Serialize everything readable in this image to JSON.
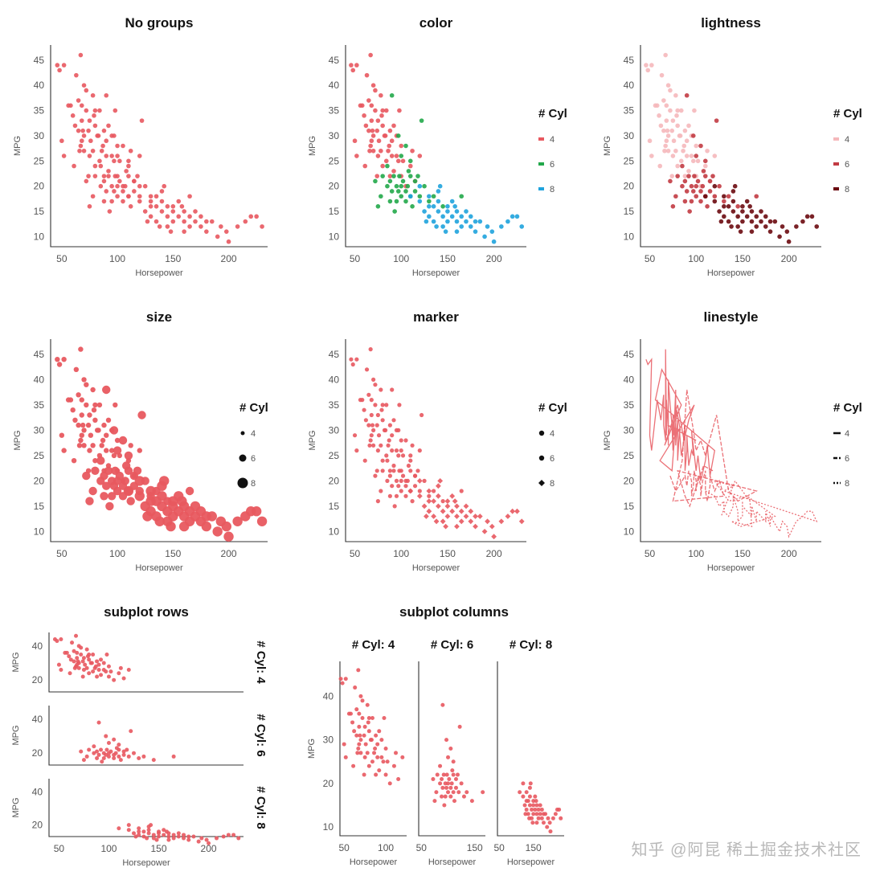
{
  "palette": {
    "base": "#e8585f",
    "c4": "#e8585f",
    "c6": "#22a84a",
    "c8": "#1fa3dd",
    "l4": "#f5b8bb",
    "l6": "#c23b43",
    "l8": "#6b0a10"
  },
  "common": {
    "xlabel": "Horsepower",
    "ylabel": "MPG",
    "legend_title": "# Cyl",
    "groups": [
      "4",
      "6",
      "8"
    ]
  },
  "panels": [
    {
      "key": "nogroups",
      "title": "No groups"
    },
    {
      "key": "color",
      "title": "color"
    },
    {
      "key": "lightness",
      "title": "lightness"
    },
    {
      "key": "size",
      "title": "size"
    },
    {
      "key": "marker",
      "title": "marker"
    },
    {
      "key": "linestyle",
      "title": "linestyle"
    }
  ],
  "subplot_rows": {
    "title": "subplot rows",
    "strips": [
      "# Cyl: 4",
      "# Cyl: 6",
      "# Cyl: 8"
    ]
  },
  "subplot_columns": {
    "title": "subplot columns",
    "strips": [
      "# Cyl: 4",
      "# Cyl: 6",
      "# Cyl: 8"
    ]
  },
  "watermark": "知乎 @阿昆 稀土掘金技术社区",
  "chart_data": {
    "type": "scatter",
    "xlim": [
      40,
      235
    ],
    "ylim": [
      8,
      48
    ],
    "x_ticks": [
      50,
      100,
      150,
      200
    ],
    "y_ticks": [
      10,
      15,
      20,
      25,
      30,
      35,
      40,
      45
    ],
    "series": [
      {
        "name": "4",
        "points": [
          [
            46,
            44
          ],
          [
            48,
            43
          ],
          [
            52,
            44
          ],
          [
            50,
            29
          ],
          [
            52,
            26
          ],
          [
            58,
            36
          ],
          [
            60,
            34
          ],
          [
            62,
            32
          ],
          [
            65,
            37
          ],
          [
            65,
            31
          ],
          [
            67,
            28
          ],
          [
            67,
            46
          ],
          [
            68,
            29
          ],
          [
            68,
            33
          ],
          [
            68,
            36
          ],
          [
            70,
            30
          ],
          [
            70,
            27
          ],
          [
            70,
            40
          ],
          [
            72,
            35
          ],
          [
            74,
            31
          ],
          [
            75,
            26
          ],
          [
            75,
            33
          ],
          [
            76,
            29
          ],
          [
            78,
            38
          ],
          [
            78,
            27
          ],
          [
            80,
            32
          ],
          [
            80,
            24
          ],
          [
            82,
            30
          ],
          [
            84,
            25
          ],
          [
            86,
            27
          ],
          [
            88,
            31
          ],
          [
            88,
            22
          ],
          [
            90,
            26
          ],
          [
            90,
            29
          ],
          [
            92,
            23
          ],
          [
            95,
            26
          ],
          [
            97,
            25
          ],
          [
            95,
            30
          ],
          [
            100,
            22
          ],
          [
            102,
            25
          ],
          [
            105,
            20
          ],
          [
            110,
            24
          ],
          [
            112,
            27
          ],
          [
            115,
            21
          ],
          [
            120,
            26
          ],
          [
            56,
            36
          ],
          [
            63,
            42
          ],
          [
            72,
            39
          ],
          [
            84,
            35
          ],
          [
            66,
            27
          ],
          [
            80,
            35
          ],
          [
            87,
            28
          ],
          [
            92,
            32
          ],
          [
            98,
            35
          ],
          [
            61,
            24
          ],
          [
            74,
            22
          ],
          [
            79,
            34
          ],
          [
            83,
            30
          ],
          [
            69,
            31
          ],
          [
            100,
            28
          ]
        ]
      },
      {
        "name": "6",
        "points": [
          [
            72,
            21
          ],
          [
            78,
            18
          ],
          [
            85,
            20
          ],
          [
            88,
            21
          ],
          [
            90,
            19
          ],
          [
            92,
            22
          ],
          [
            95,
            20
          ],
          [
            95,
            17
          ],
          [
            97,
            19
          ],
          [
            98,
            22
          ],
          [
            100,
            20
          ],
          [
            100,
            18
          ],
          [
            102,
            21
          ],
          [
            105,
            19
          ],
          [
            105,
            17
          ],
          [
            107,
            20
          ],
          [
            110,
            22
          ],
          [
            110,
            18
          ],
          [
            112,
            16
          ],
          [
            115,
            19
          ],
          [
            115,
            21
          ],
          [
            120,
            18
          ],
          [
            125,
            20
          ],
          [
            130,
            17
          ],
          [
            75,
            16
          ],
          [
            85,
            24
          ],
          [
            90,
            38
          ],
          [
            97,
            30
          ],
          [
            100,
            26
          ],
          [
            105,
            28
          ],
          [
            110,
            25
          ],
          [
            122,
            33
          ],
          [
            135,
            18
          ],
          [
            145,
            16
          ],
          [
            165,
            18
          ],
          [
            80,
            22
          ],
          [
            88,
            17
          ],
          [
            93,
            15
          ],
          [
            108,
            23
          ],
          [
            118,
            22
          ]
        ]
      },
      {
        "name": "8",
        "points": [
          [
            110,
            18
          ],
          [
            120,
            17
          ],
          [
            125,
            15
          ],
          [
            130,
            16
          ],
          [
            130,
            14
          ],
          [
            135,
            13
          ],
          [
            140,
            15
          ],
          [
            140,
            17
          ],
          [
            145,
            14
          ],
          [
            145,
            12
          ],
          [
            150,
            13
          ],
          [
            150,
            16
          ],
          [
            150,
            15
          ],
          [
            155,
            14
          ],
          [
            160,
            13
          ],
          [
            160,
            15
          ],
          [
            165,
            12
          ],
          [
            165,
            14
          ],
          [
            170,
            13
          ],
          [
            175,
            12
          ],
          [
            175,
            14
          ],
          [
            180,
            11
          ],
          [
            180,
            13
          ],
          [
            190,
            10
          ],
          [
            193,
            12
          ],
          [
            198,
            11
          ],
          [
            200,
            9
          ],
          [
            208,
            12
          ],
          [
            215,
            13
          ],
          [
            220,
            14
          ],
          [
            225,
            14
          ],
          [
            230,
            12
          ],
          [
            130,
            18
          ],
          [
            140,
            19
          ],
          [
            120,
            20
          ],
          [
            135,
            16
          ],
          [
            155,
            17
          ],
          [
            170,
            15
          ],
          [
            185,
            13
          ],
          [
            148,
            11
          ],
          [
            138,
            12
          ],
          [
            160,
            11
          ],
          [
            158,
            16
          ],
          [
            142,
            20
          ],
          [
            127,
            13
          ]
        ]
      }
    ]
  }
}
